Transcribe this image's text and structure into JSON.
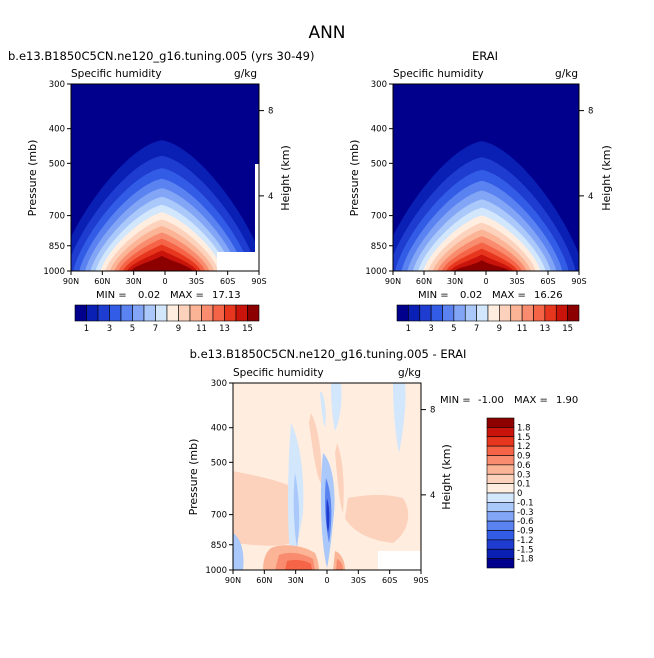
{
  "page_title": "ANN",
  "chart_data": [
    {
      "type": "heatmap",
      "title": "b.e13.B1850C5CN.ne120_g16.tuning.005 (yrs 30-49)",
      "subtitle_left": "Specific humidity",
      "subtitle_right": "g/kg",
      "ylabel": "Pressure (mb)",
      "ylabel_right": "Height (km)",
      "x_ticks": [
        "90N",
        "60N",
        "30N",
        "0",
        "30S",
        "60S",
        "90S"
      ],
      "y_ticks": [
        "300",
        "400",
        "500",
        "700",
        "850",
        "1000"
      ],
      "right_ticks": [
        "8",
        "4"
      ],
      "min_label": "MIN =",
      "min_value": "0.02",
      "max_label": "MAX =",
      "max_value": "17.13",
      "peak_value": 17.13,
      "peak_lat": 3,
      "colorbar": {
        "labels": [
          "1",
          "3",
          "5",
          "7",
          "9",
          "11",
          "13",
          "15"
        ],
        "colors": [
          "#00008c",
          "#0a1fb4",
          "#1e3ccf",
          "#325ce6",
          "#5a82f0",
          "#82a5f5",
          "#aac8fa",
          "#d2e6fc",
          "#ffeee0",
          "#fdd2bc",
          "#fbb496",
          "#f98c6e",
          "#f56446",
          "#e6371e",
          "#c8140a",
          "#8c0000"
        ]
      }
    },
    {
      "type": "heatmap",
      "title": "ERAI",
      "subtitle_left": "Specific humidity",
      "subtitle_right": "g/kg",
      "ylabel": "Pressure (mb)",
      "ylabel_right": "Height (km)",
      "x_ticks": [
        "90N",
        "60N",
        "30N",
        "0",
        "30S",
        "60S",
        "90S"
      ],
      "y_ticks": [
        "300",
        "400",
        "500",
        "700",
        "850",
        "1000"
      ],
      "right_ticks": [
        "8",
        "4"
      ],
      "min_label": "MIN =",
      "min_value": "0.02",
      "max_label": "MAX =",
      "max_value": "16.26",
      "peak_value": 16.26,
      "peak_lat": 4,
      "colorbar": {
        "labels": [
          "1",
          "3",
          "5",
          "7",
          "9",
          "11",
          "13",
          "15"
        ],
        "colors": [
          "#00008c",
          "#0a1fb4",
          "#1e3ccf",
          "#325ce6",
          "#5a82f0",
          "#82a5f5",
          "#aac8fa",
          "#d2e6fc",
          "#ffeee0",
          "#fdd2bc",
          "#fbb496",
          "#f98c6e",
          "#f56446",
          "#e6371e",
          "#c8140a",
          "#8c0000"
        ]
      }
    },
    {
      "type": "heatmap",
      "title": "b.e13.B1850C5CN.ne120_g16.tuning.005 - ERAI",
      "subtitle_left": "Specific humidity",
      "subtitle_right": "g/kg",
      "ylabel": "Pressure (mb)",
      "ylabel_right": "Height (km)",
      "x_ticks": [
        "90N",
        "60N",
        "30N",
        "0",
        "30S",
        "60S",
        "90S"
      ],
      "y_ticks": [
        "300",
        "400",
        "500",
        "700",
        "850",
        "1000"
      ],
      "right_ticks": [
        "8",
        "4"
      ],
      "min_label": "MIN =",
      "min_value": "-1.00",
      "max_label": "MAX =",
      "max_value": "1.90",
      "colorbar": {
        "labels": [
          "1.8",
          "1.5",
          "1.2",
          "0.9",
          "0.6",
          "0.3",
          "0.1",
          "0",
          "-0.1",
          "-0.3",
          "-0.6",
          "-0.9",
          "-1.2",
          "-1.5",
          "-1.8"
        ],
        "colors": [
          "#8c0000",
          "#c8140a",
          "#e6371e",
          "#f56446",
          "#f98c6e",
          "#fbb496",
          "#fdd2bc",
          "#ffeee0",
          "#d2e6fc",
          "#aac8fa",
          "#82a5f5",
          "#5a82f0",
          "#325ce6",
          "#1e3ccf",
          "#0a1fb4",
          "#00008c"
        ]
      }
    }
  ]
}
